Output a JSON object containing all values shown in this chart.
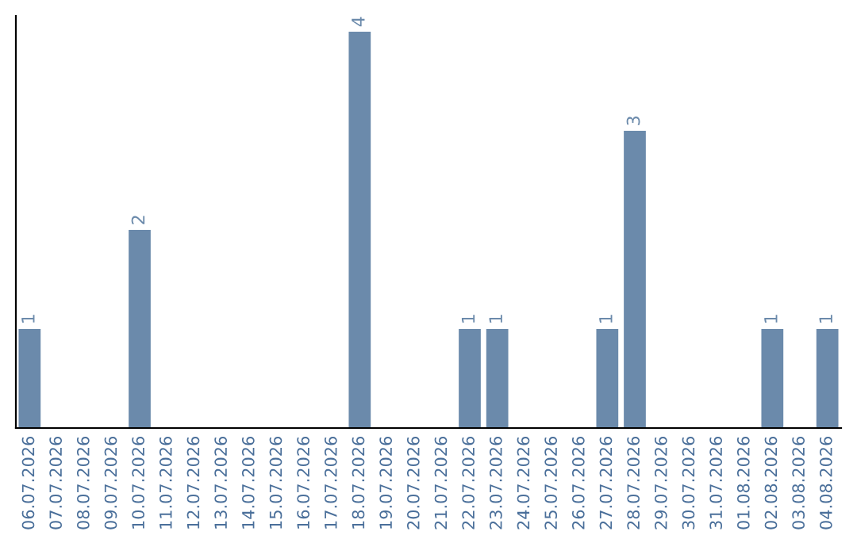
{
  "chart_data": {
    "type": "bar",
    "categories": [
      "06.07.2026",
      "07.07.2026",
      "08.07.2026",
      "09.07.2026",
      "10.07.2026",
      "11.07.2026",
      "12.07.2026",
      "13.07.2026",
      "14.07.2026",
      "15.07.2026",
      "16.07.2026",
      "17.07.2026",
      "18.07.2026",
      "19.07.2026",
      "20.07.2026",
      "21.07.2026",
      "22.07.2026",
      "23.07.2026",
      "24.07.2026",
      "25.07.2026",
      "26.07.2026",
      "27.07.2026",
      "28.07.2026",
      "29.07.2026",
      "30.07.2026",
      "31.07.2026",
      "01.08.2026",
      "02.08.2026",
      "03.08.2026",
      "04.08.2026"
    ],
    "values": [
      1,
      0,
      0,
      0,
      2,
      0,
      0,
      0,
      0,
      0,
      0,
      0,
      4,
      0,
      0,
      0,
      1,
      1,
      0,
      0,
      0,
      1,
      3,
      0,
      0,
      0,
      0,
      1,
      0,
      1
    ],
    "value_labels": [
      "1",
      null,
      null,
      null,
      "2",
      null,
      null,
      null,
      null,
      null,
      null,
      null,
      "4",
      null,
      null,
      null,
      "1",
      "1",
      null,
      null,
      null,
      "1",
      "3",
      null,
      null,
      null,
      null,
      "1",
      null,
      "1"
    ],
    "color": "#6b8aab",
    "grid": false,
    "legend": false,
    "tick_labels": "x"
  }
}
